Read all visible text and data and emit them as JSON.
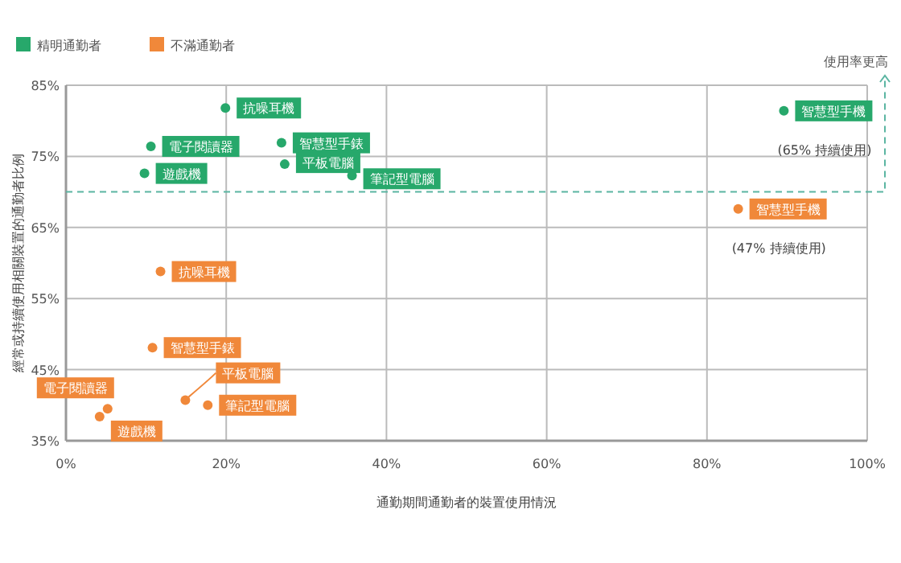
{
  "chart_data": {
    "type": "scatter",
    "xlabel": "通勤期間通勤者的裝置使用情況",
    "ylabel": "經常或持續使用相關裝置的通勤者比例",
    "xlim": [
      0,
      100
    ],
    "ylim": [
      35,
      85
    ],
    "xticks": [
      {
        "value": 0,
        "label": "0%"
      },
      {
        "value": 20,
        "label": "20%"
      },
      {
        "value": 40,
        "label": "40%"
      },
      {
        "value": 60,
        "label": "60%"
      },
      {
        "value": 80,
        "label": "80%"
      },
      {
        "value": 100,
        "label": "100%"
      }
    ],
    "yticks": [
      {
        "value": 35,
        "label": "35%"
      },
      {
        "value": 45,
        "label": "45%"
      },
      {
        "value": 55,
        "label": "55%"
      },
      {
        "value": 65,
        "label": "65%"
      },
      {
        "value": 75,
        "label": "75%"
      },
      {
        "value": 85,
        "label": "85%"
      }
    ],
    "grid": true,
    "legend": "top left",
    "marker": "circle",
    "series": [
      {
        "name": "精明通勤者",
        "color": "#27a86b",
        "x": [
          19.9,
          10.6,
          9.8,
          26.9,
          27.3,
          35.7,
          89.6
        ],
        "values": [
          81.8,
          76.4,
          72.6,
          76.9,
          73.9,
          72.3,
          81.4
        ]
      },
      {
        "name": "不滿通勤者",
        "color": "#f0883a",
        "x": [
          11.8,
          10.8,
          14.9,
          17.7,
          5.2,
          4.2,
          83.9
        ],
        "values": [
          58.8,
          48.1,
          40.7,
          40.0,
          39.5,
          38.4,
          67.6
        ]
      }
    ],
    "ref_lines": [
      {
        "axis": "y",
        "value": 70,
        "label": "使用率更高",
        "color": "#5bb5a2",
        "line_style": "dashed"
      }
    ],
    "annotations": [
      {
        "text": "抗噪耳機",
        "x": 19.9,
        "y": 81.8
      },
      {
        "text": "電子閱讀器",
        "x": 10.6,
        "y": 76.4
      },
      {
        "text": "遊戲機",
        "x": 9.8,
        "y": 72.6
      },
      {
        "text": "智慧型手錶",
        "x": 26.9,
        "y": 76.9
      },
      {
        "text": "平板電腦",
        "x": 27.3,
        "y": 73.9
      },
      {
        "text": "筆記型電腦",
        "x": 35.7,
        "y": 72.3
      },
      {
        "text": "智慧型手機",
        "x": 89.6,
        "y": 81.4
      },
      {
        "text": "抗噪耳機",
        "x": 11.8,
        "y": 58.8
      },
      {
        "text": "智慧型手錶",
        "x": 10.8,
        "y": 48.1
      },
      {
        "text": "平板電腦",
        "x": 14.9,
        "y": 40.7
      },
      {
        "text": "筆記型電腦",
        "x": 17.7,
        "y": 40.0
      },
      {
        "text": "電子閱讀器",
        "x": 5.2,
        "y": 39.5
      },
      {
        "text": "遊戲機",
        "x": 4.2,
        "y": 38.4
      },
      {
        "text": "智慧型手機",
        "x": 83.9,
        "y": 67.6
      },
      {
        "text": "(65% 持續使用)",
        "x": 89.6,
        "y": 81.4
      },
      {
        "text": "(47% 持續使用)",
        "x": 83.9,
        "y": 67.6
      }
    ]
  }
}
